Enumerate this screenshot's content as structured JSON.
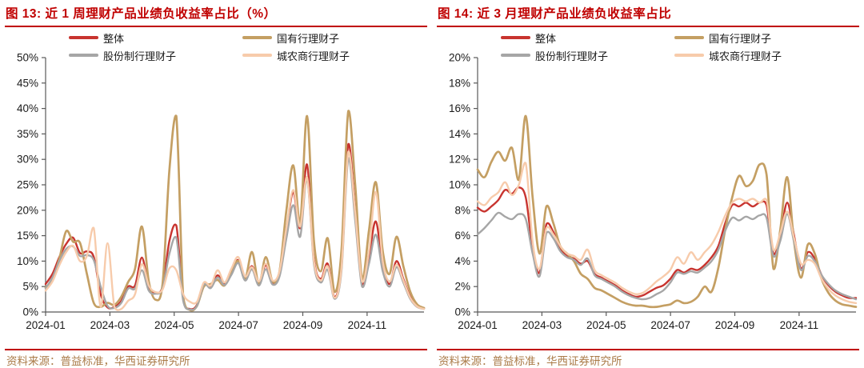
{
  "colors": {
    "title_red": "#c00000",
    "rule_red": "#c00000",
    "source_bronze": "#aa7b48",
    "axis_gray": "#595959",
    "tick_text": "#1a1a1a",
    "series_overall": "#c8342f",
    "series_state_owned": "#c49f63",
    "series_joint_stock": "#a6a6a6",
    "series_city_rural": "#f7cbab"
  },
  "panels": [
    {
      "title": "图 13:  近 1 周理财产品业绩负收益率占比（%）",
      "source": "资料来源：普益标准，华西证券研究所"
    },
    {
      "title": "图 14:  近 3 月理财产品业绩负收益率占比",
      "source": "资料来源：普益标准，华西证券研究所"
    }
  ],
  "chart_data": [
    {
      "type": "line",
      "title": "近 1 周理财产品业绩负收益率占比（%）",
      "xlabel": "",
      "ylabel": "",
      "ylim": [
        0,
        50
      ],
      "ytick_step": 5,
      "grid": false,
      "legend_position": "top",
      "x_tick_labels": [
        "2024-01",
        "2024-03",
        "2024-05",
        "2024-07",
        "2024-09",
        "2024-11"
      ],
      "y_tick_labels": [
        "0%",
        "5%",
        "10%",
        "15%",
        "20%",
        "25%",
        "30%",
        "35%",
        "40%",
        "45%",
        "50%"
      ],
      "x_range_months": [
        "2024-01",
        "2024-12"
      ],
      "series": [
        {
          "name": "整体",
          "color": "#c8342f",
          "width": 2.4,
          "values": [
            5.5,
            7.5,
            10.8,
            13.4,
            14.6,
            11.6,
            11.9,
            10.8,
            3.5,
            0.9,
            1.0,
            2.2,
            5.0,
            5.2,
            10.7,
            4.8,
            3.8,
            5.0,
            14.0,
            17.0,
            2.5,
            0.6,
            1.4,
            5.6,
            5.0,
            7.2,
            5.6,
            7.8,
            10.2,
            6.6,
            9.0,
            5.6,
            9.2,
            5.8,
            7.5,
            16.0,
            23.5,
            16.5,
            29.0,
            10.5,
            6.5,
            9.5,
            3.0,
            9.0,
            33.0,
            20.0,
            5.5,
            11.0,
            17.8,
            9.0,
            5.5,
            10.0,
            6.5,
            3.0,
            1.2,
            0.7
          ]
        },
        {
          "name": "国有行理财子",
          "color": "#c49f63",
          "width": 2.7,
          "values": [
            4.8,
            6.5,
            10.5,
            15.9,
            13.8,
            13.6,
            7.5,
            1.8,
            1.0,
            1.8,
            1.4,
            3.0,
            5.9,
            8.5,
            16.8,
            6.0,
            2.4,
            5.5,
            28.0,
            38.5,
            3.0,
            0.4,
            1.2,
            5.0,
            5.5,
            6.3,
            5.2,
            8.0,
            10.0,
            6.5,
            11.8,
            5.5,
            10.8,
            6.0,
            8.0,
            20.0,
            28.8,
            17.5,
            38.5,
            14.0,
            8.0,
            14.5,
            4.0,
            12.0,
            39.5,
            25.0,
            6.5,
            16.0,
            25.5,
            12.0,
            7.5,
            14.8,
            9.0,
            4.0,
            1.5,
            0.8
          ]
        },
        {
          "name": "股份制行理财子",
          "color": "#a6a6a6",
          "width": 2.4,
          "values": [
            4.6,
            6.8,
            10.0,
            12.4,
            12.9,
            11.0,
            11.2,
            10.2,
            5.0,
            1.2,
            0.8,
            1.8,
            4.6,
            4.6,
            8.2,
            4.2,
            3.6,
            4.6,
            11.5,
            14.6,
            2.2,
            0.5,
            1.2,
            5.4,
            4.7,
            6.8,
            5.3,
            7.3,
            9.6,
            6.2,
            8.4,
            5.2,
            8.4,
            5.4,
            7.0,
            14.5,
            21.0,
            14.8,
            26.2,
            9.5,
            5.8,
            8.3,
            2.6,
            8.0,
            30.2,
            18.0,
            5.0,
            9.5,
            15.2,
            8.0,
            5.0,
            8.8,
            5.8,
            2.6,
            1.0,
            0.6
          ]
        },
        {
          "name": "城农商行理财子",
          "color": "#f7cbab",
          "width": 2.4,
          "values": [
            4.2,
            6.0,
            9.2,
            11.8,
            13.0,
            10.0,
            11.0,
            16.5,
            1.0,
            13.5,
            1.0,
            0.6,
            2.2,
            3.5,
            9.4,
            5.2,
            3.9,
            4.4,
            8.6,
            8.2,
            3.5,
            2.0,
            2.0,
            5.8,
            5.2,
            8.2,
            5.8,
            8.5,
            10.8,
            7.0,
            8.8,
            6.0,
            9.5,
            6.2,
            8.0,
            16.5,
            24.0,
            16.8,
            26.5,
            10.0,
            6.2,
            9.0,
            2.8,
            8.5,
            31.5,
            19.5,
            6.0,
            12.0,
            23.6,
            10.0,
            6.0,
            9.3,
            6.2,
            2.8,
            1.1,
            0.6
          ]
        }
      ]
    },
    {
      "type": "line",
      "title": "近 3 月理财产品业绩负收益率占比",
      "xlabel": "",
      "ylabel": "",
      "ylim": [
        0,
        20
      ],
      "ytick_step": 2,
      "grid": false,
      "legend_position": "top",
      "x_tick_labels": [
        "2024-01",
        "2024-03",
        "2024-05",
        "2024-07",
        "2024-09",
        "2024-11"
      ],
      "y_tick_labels": [
        "0%",
        "2%",
        "4%",
        "6%",
        "8%",
        "10%",
        "12%",
        "14%",
        "16%",
        "18%",
        "20%"
      ],
      "x_range_months": [
        "2024-01",
        "2024-12"
      ],
      "series": [
        {
          "name": "整体",
          "color": "#c8342f",
          "width": 2.4,
          "values": [
            8.2,
            7.9,
            8.3,
            8.8,
            9.6,
            9.3,
            9.8,
            9.0,
            5.0,
            3.1,
            6.9,
            6.3,
            5.0,
            4.4,
            4.2,
            3.8,
            4.0,
            3.0,
            2.7,
            2.4,
            2.1,
            1.7,
            1.4,
            1.2,
            1.3,
            1.6,
            1.9,
            2.1,
            2.6,
            3.3,
            3.1,
            3.4,
            3.3,
            3.7,
            4.3,
            5.2,
            7.0,
            8.4,
            8.3,
            8.6,
            8.3,
            8.6,
            8.4,
            4.6,
            6.0,
            8.6,
            6.0,
            3.4,
            4.7,
            4.2,
            2.9,
            2.1,
            1.6,
            1.3,
            1.1,
            1.1
          ]
        },
        {
          "name": "国有行理财子",
          "color": "#c49f63",
          "width": 2.7,
          "values": [
            11.2,
            10.6,
            11.8,
            12.6,
            11.9,
            12.9,
            10.4,
            15.4,
            9.0,
            4.6,
            8.3,
            7.0,
            5.2,
            4.6,
            4.0,
            3.0,
            2.6,
            1.9,
            1.7,
            1.4,
            1.1,
            0.8,
            0.6,
            0.5,
            0.5,
            0.4,
            0.4,
            0.5,
            0.6,
            0.9,
            0.7,
            0.8,
            1.2,
            2.0,
            1.6,
            3.5,
            6.5,
            9.0,
            10.7,
            9.9,
            10.3,
            11.6,
            10.8,
            3.4,
            6.5,
            10.6,
            5.5,
            2.7,
            5.3,
            4.6,
            2.6,
            1.5,
            0.9,
            0.6,
            0.5,
            0.4
          ]
        },
        {
          "name": "股份制行理财子",
          "color": "#a6a6a6",
          "width": 2.4,
          "values": [
            6.1,
            6.6,
            7.2,
            7.8,
            7.5,
            7.3,
            7.7,
            7.3,
            4.6,
            2.8,
            6.2,
            5.8,
            4.8,
            4.3,
            4.1,
            3.7,
            4.2,
            2.9,
            2.6,
            2.3,
            2.0,
            1.6,
            1.3,
            1.1,
            1.0,
            1.1,
            1.4,
            1.7,
            2.3,
            3.1,
            3.0,
            3.2,
            3.1,
            3.5,
            4.0,
            4.9,
            6.4,
            7.4,
            7.2,
            7.5,
            7.3,
            7.6,
            7.4,
            4.4,
            5.6,
            7.7,
            5.5,
            3.3,
            4.4,
            4.0,
            2.9,
            2.2,
            1.7,
            1.4,
            1.2,
            1.0
          ]
        },
        {
          "name": "城农商行理财子",
          "color": "#f7cbab",
          "width": 2.4,
          "values": [
            8.7,
            8.4,
            9.0,
            9.4,
            10.2,
            9.2,
            10.0,
            11.7,
            5.5,
            3.4,
            6.6,
            6.1,
            5.2,
            4.6,
            4.4,
            4.1,
            4.9,
            3.3,
            2.9,
            2.6,
            2.3,
            1.9,
            1.6,
            1.4,
            1.5,
            1.9,
            2.4,
            2.8,
            3.3,
            4.3,
            3.8,
            4.7,
            4.1,
            4.7,
            5.3,
            6.3,
            7.6,
            8.6,
            8.9,
            8.7,
            8.9,
            8.6,
            8.8,
            4.9,
            6.2,
            7.9,
            5.8,
            3.8,
            4.1,
            3.8,
            2.6,
            1.8,
            1.3,
            1.0,
            0.8,
            0.7
          ]
        }
      ]
    }
  ]
}
